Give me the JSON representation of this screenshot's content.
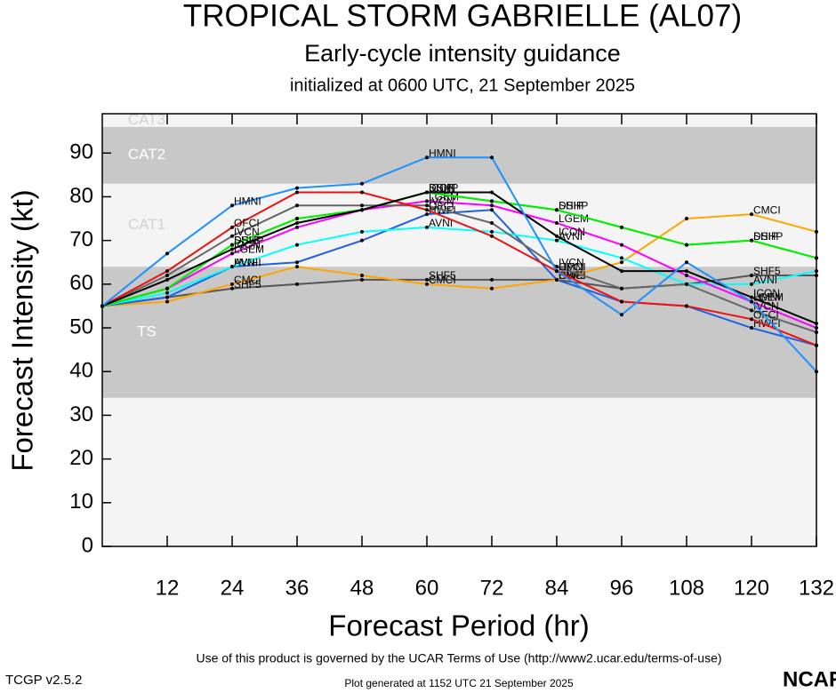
{
  "chart_data": {
    "type": "line",
    "title": "TROPICAL STORM GABRIELLE (AL07)",
    "subtitle": "Early-cycle intensity guidance",
    "init": "initialized at 0600 UTC, 21 September 2025",
    "x_label": "Forecast Period (hr)",
    "y_label": "Forecast Intensity (kt)",
    "x": [
      0,
      12,
      24,
      36,
      48,
      60,
      72,
      84,
      96,
      108,
      120,
      132
    ],
    "xlim": [
      0,
      132
    ],
    "xticks": [
      12,
      24,
      36,
      48,
      60,
      72,
      84,
      96,
      108,
      120,
      132
    ],
    "ylim": [
      0,
      99
    ],
    "yticks": [
      0,
      10,
      20,
      30,
      40,
      50,
      60,
      70,
      80,
      90
    ],
    "bands": [
      {
        "label": "TS",
        "min": 34
      },
      {
        "label": "CAT1",
        "min": 64
      },
      {
        "label": "CAT2",
        "min": 83
      },
      {
        "label": "CAT3",
        "min": 96
      }
    ],
    "band_colors": [
      "#c8c8c8",
      "#f4f4f4"
    ],
    "series": [
      {
        "name": "SHF5",
        "color": "#555555",
        "values": [
          55,
          57,
          59,
          60,
          61,
          61,
          61,
          61,
          59,
          60,
          62,
          62
        ]
      },
      {
        "name": "CMCI",
        "color": "#ffa500",
        "values": [
          55,
          56,
          60,
          64,
          62,
          60,
          59,
          61,
          65,
          75,
          76,
          72
        ]
      },
      {
        "name": "HWFI",
        "color": "#2060e0",
        "values": [
          55,
          57,
          64,
          65,
          70,
          76,
          77,
          61,
          56,
          55,
          50,
          46
        ]
      },
      {
        "name": "AVNI",
        "color": "#00ffff",
        "values": [
          55,
          58,
          64,
          69,
          72,
          73,
          72,
          70,
          66,
          60,
          60,
          63
        ]
      },
      {
        "name": "LGEM",
        "color": "#ff00ff",
        "values": [
          55,
          59,
          67,
          73,
          77,
          79,
          78,
          74,
          69,
          62,
          56,
          50
        ]
      },
      {
        "name": "SHIP",
        "color": "#00ee00",
        "values": [
          55,
          59,
          69,
          75,
          77,
          81,
          79,
          77,
          73,
          69,
          70,
          66
        ]
      },
      {
        "name": "DSHP",
        "color": "#00ee00",
        "values": [
          55,
          59,
          69,
          75,
          77,
          81,
          79,
          77,
          73,
          69,
          70,
          66
        ]
      },
      {
        "name": "IVCN",
        "color": "#666666",
        "values": [
          55,
          62,
          71,
          78,
          78,
          78,
          74,
          64,
          59,
          60,
          54,
          49
        ]
      },
      {
        "name": "OFCI",
        "color": "#ee1111",
        "values": [
          55,
          63,
          73,
          81,
          81,
          77,
          71,
          63,
          56,
          55,
          52,
          46
        ]
      },
      {
        "name": "ICON",
        "color": "#000000",
        "values": [
          55,
          61,
          68,
          74,
          77,
          81,
          81,
          71,
          63,
          63,
          57,
          51
        ]
      },
      {
        "name": "HMNI",
        "color": "#1e90ff",
        "values": [
          55,
          67,
          78,
          82,
          83,
          89,
          89,
          63,
          53,
          65,
          56,
          40
        ]
      }
    ]
  },
  "notice": "Use of this product is governed by the UCAR Terms of Use (http://www2.ucar.edu/terms-of-use)",
  "version": "TCGP v2.5.2",
  "generated": "Plot generated at 1152 UTC   21 September 2025",
  "logo": "NCAR"
}
